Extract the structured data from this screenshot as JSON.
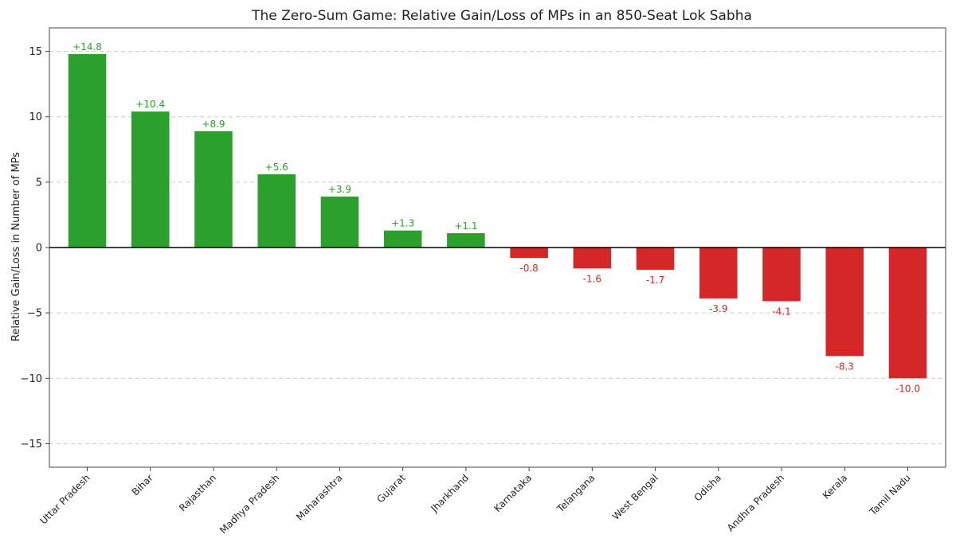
{
  "chart_data": {
    "type": "bar",
    "title": "The Zero-Sum Game: Relative Gain/Loss of MPs in an 850-Seat Lok Sabha",
    "xlabel": "",
    "ylabel": "Relative Gain/Loss in Number of MPs",
    "ylim": [
      -16.8,
      16.8
    ],
    "yticks": [
      15,
      10,
      5,
      0,
      -5,
      -10,
      -15
    ],
    "ytick_labels": [
      "15",
      "10",
      "5",
      "0",
      "−5",
      "−10",
      "−15"
    ],
    "grid": true,
    "categories": [
      "Uttar Pradesh",
      "Bihar",
      "Rajasthan",
      "Madhya Pradesh",
      "Maharashtra",
      "Gujarat",
      "Jharkhand",
      "Karnataka",
      "Telangana",
      "West Bengal",
      "Odisha",
      "Andhra Pradesh",
      "Kerala",
      "Tamil Nadu"
    ],
    "values": [
      14.8,
      10.4,
      8.9,
      5.6,
      3.9,
      1.3,
      1.1,
      -0.8,
      -1.6,
      -1.7,
      -3.9,
      -4.1,
      -8.3,
      -10.0
    ],
    "value_labels": [
      "+14.8",
      "+10.4",
      "+8.9",
      "+5.6",
      "+3.9",
      "+1.3",
      "+1.1",
      "-0.8",
      "-1.6",
      "-1.7",
      "-3.9",
      "-4.1",
      "-8.3",
      "-10.0"
    ],
    "colors": {
      "positive": "#2ca02c",
      "negative": "#d62728"
    }
  }
}
